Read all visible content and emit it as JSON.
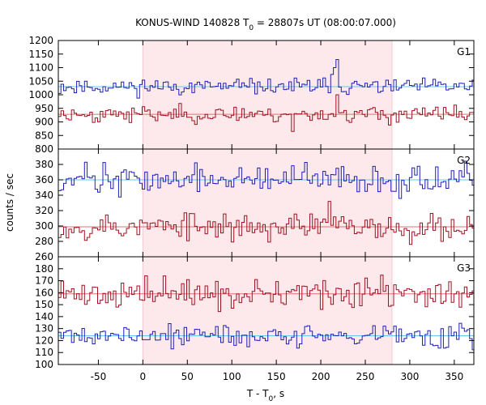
{
  "chart_data": {
    "type": "line",
    "title": "KONUS-WIND 140828 T",
    "title_sub": "0",
    "title_rest": " = 28807s UT (08:00:07.000)",
    "xlabel": "T - T",
    "xlabel_sub": "0",
    "xlabel_rest": ", s",
    "ylabel": "counts / sec",
    "xlim": [
      -95,
      372
    ],
    "x_ticks": [
      -50,
      0,
      50,
      100,
      150,
      200,
      250,
      300,
      350
    ],
    "highlight": {
      "x_start": 0,
      "x_end": 280,
      "color": "#fde8ec"
    },
    "bin_width": 2.944,
    "grid": false,
    "panels": [
      {
        "label": "G1",
        "ylim": [
          800,
          1200
        ],
        "y_ticks": [
          800,
          850,
          900,
          950,
          1000,
          1050,
          1100,
          1150,
          1200
        ],
        "series": [
          {
            "color": "#1f1fb4",
            "background_level": 1030,
            "background_color": "#66c8e8",
            "mean": 1030,
            "noise": 14,
            "seed": 11,
            "spikes": [
              {
                "x": 215,
                "value": 1100
              },
              {
                "x": 218,
                "value": 1130
              },
              {
                "x": 212,
                "value": 1075
              }
            ]
          },
          {
            "color": "#a01020",
            "background_level": 928,
            "background_color": "#e07070",
            "mean": 928,
            "noise": 15,
            "seed": 23,
            "spikes": [
              {
                "x": 218,
                "value": 1000
              },
              {
                "x": 168,
                "value": 865
              }
            ]
          }
        ]
      },
      {
        "label": "G2",
        "ylim": [
          260,
          400
        ],
        "y_ticks": [
          260,
          280,
          300,
          320,
          340,
          360,
          380
        ],
        "series": [
          {
            "color": "#1f1fb4",
            "background_level": 360,
            "background_color": "#66c8e8",
            "mean": 360,
            "noise": 9,
            "seed": 37,
            "spikes": [
              {
                "x": -64,
                "value": 383
              }
            ]
          },
          {
            "color": "#a01020",
            "background_level": 299,
            "background_color": "#e07070",
            "mean": 299,
            "noise": 9,
            "seed": 53,
            "spikes": [
              {
                "x": 209,
                "value": 332
              }
            ]
          }
        ]
      },
      {
        "label": "G3",
        "ylim": [
          100,
          190
        ],
        "y_ticks": [
          100,
          110,
          120,
          130,
          140,
          150,
          160,
          170,
          180
        ],
        "series": [
          {
            "color": "#a01020",
            "background_level": 159,
            "background_color": "#e07070",
            "mean": 159,
            "noise": 6,
            "seed": 71,
            "spikes": []
          },
          {
            "color": "#1f1fb4",
            "background_level": 124,
            "background_color": "#66c8e8",
            "mean": 124,
            "noise": 5,
            "seed": 89,
            "spikes": []
          }
        ]
      }
    ]
  }
}
